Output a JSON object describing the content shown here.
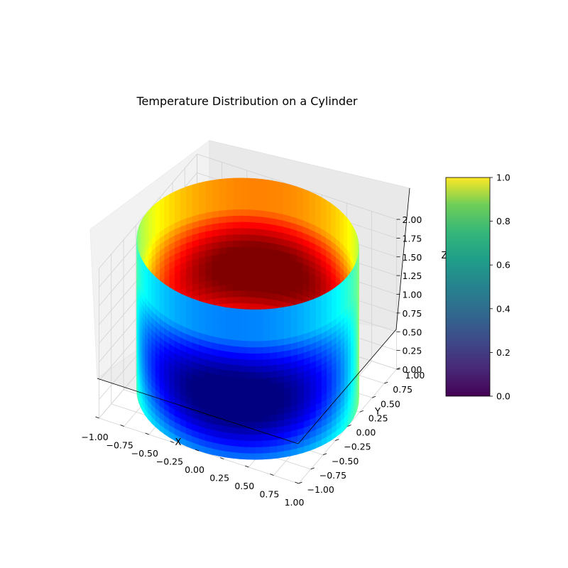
{
  "chart_data": {
    "type": "surface3d",
    "title": "Temperature Distribution on a Cylinder",
    "xlabel": "X",
    "ylabel": "Y",
    "zlabel": "Z",
    "xlim": [
      -1.0,
      1.0
    ],
    "ylim": [
      -1.0,
      1.0
    ],
    "zlim": [
      0.0,
      2.0
    ],
    "x_ticks": [
      "−1.00",
      "−0.75",
      "−0.50",
      "−0.25",
      "0.00",
      "0.25",
      "0.50",
      "0.75",
      "1.00"
    ],
    "y_ticks": [
      "−1.00",
      "−0.75",
      "−0.50",
      "−0.25",
      "0.00",
      "0.25",
      "0.50",
      "0.75",
      "1.00"
    ],
    "z_ticks": [
      "0.00",
      "0.25",
      "0.50",
      "0.75",
      "1.00",
      "1.25",
      "1.50",
      "1.75",
      "2.00"
    ],
    "surface": {
      "shape": "cylinder",
      "radius": 1.0,
      "height": 2.0,
      "colormap": "jet"
    },
    "colorbar": {
      "colormap": "viridis",
      "range": [
        0.0,
        1.0
      ],
      "ticks": [
        "0.0",
        "0.2",
        "0.4",
        "0.6",
        "0.8",
        "1.0"
      ]
    },
    "grid": true
  }
}
